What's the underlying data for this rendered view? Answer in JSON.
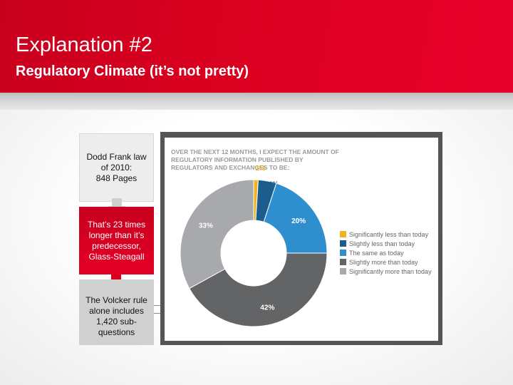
{
  "header": {
    "title": "Explanation #2",
    "subtitle": "Regulatory Climate (it’s not pretty)"
  },
  "flow": {
    "box1": [
      "Dodd Frank law",
      "of 2010:",
      "848 Pages"
    ],
    "box2": [
      "That’s 23 times",
      "longer than it’s",
      "predecessor,",
      "Glass-Steagall"
    ],
    "box3": [
      "The Volcker rule",
      "alone includes",
      "1,420 sub-",
      "questions"
    ]
  },
  "colors": {
    "accent_red": "#d9001f",
    "slice_colors": [
      "#f0b324",
      "#1b5e8e",
      "#2f8fce",
      "#636466",
      "#a7a9ac"
    ]
  },
  "chart_data": {
    "type": "pie",
    "title": "Over the next 12 months, I expect the amount of regulatory information published by regulators and exchanges to be:",
    "categories": [
      "Significantly less than today",
      "Slightly less than today",
      "The same as today",
      "Slightly more than today",
      "Significantly more than today"
    ],
    "values": [
      1,
      4,
      20,
      42,
      33
    ],
    "value_labels": [
      "1%",
      "4%",
      "20%",
      "42%",
      "33%"
    ],
    "donut": true,
    "legend": "right"
  }
}
